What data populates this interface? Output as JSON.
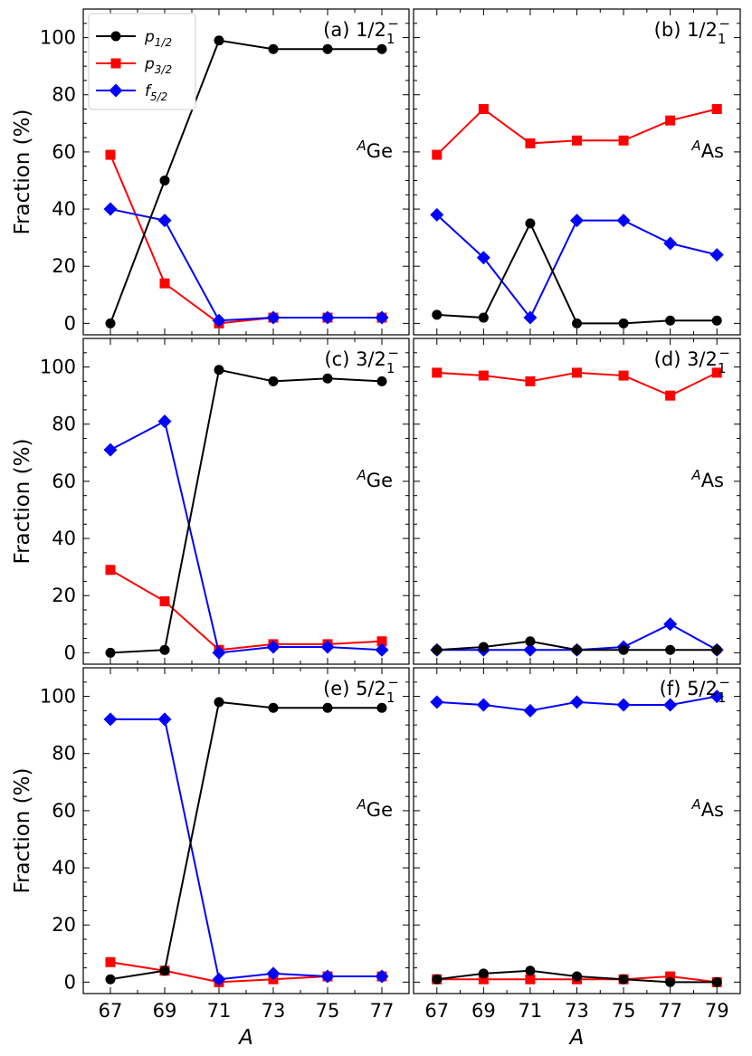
{
  "chart_data": {
    "type": "line",
    "ylabel": "Fraction (%)",
    "xlabel": "A",
    "ylim": [
      -4,
      110
    ],
    "yticks": [
      0,
      20,
      40,
      60,
      80,
      100
    ],
    "grid": false,
    "legend": {
      "placement": "top-left of panel (a)",
      "entries": [
        {
          "series": "p12",
          "text": "p",
          "sub": "1/2"
        },
        {
          "series": "p32",
          "text": "p",
          "sub": "3/2"
        },
        {
          "series": "f52",
          "text": "f",
          "sub": "5/2"
        }
      ]
    },
    "series_styles": {
      "p12": {
        "color": "#000000",
        "marker": "circle"
      },
      "p32": {
        "color": "#ff0000",
        "marker": "square"
      },
      "f52": {
        "color": "#0000ff",
        "marker": "diamond"
      }
    },
    "columns": [
      {
        "nucleus": "Ge",
        "superscript": "A",
        "x": [
          67,
          69,
          71,
          73,
          75,
          77
        ],
        "xlim": [
          66,
          78
        ]
      },
      {
        "nucleus": "As",
        "superscript": "A",
        "x": [
          67,
          69,
          71,
          73,
          75,
          77,
          79
        ],
        "xlim": [
          66,
          80
        ]
      }
    ],
    "panels": [
      {
        "id": "a",
        "col": 0,
        "row": 0,
        "label": "(a) 1/2",
        "level_sub": "1",
        "level_sup": "−",
        "series": {
          "p12": [
            0,
            50,
            99,
            96,
            96,
            96
          ],
          "p32": [
            59,
            14,
            0,
            2,
            2,
            2
          ],
          "f52": [
            40,
            36,
            1,
            2,
            2,
            2
          ]
        }
      },
      {
        "id": "b",
        "col": 1,
        "row": 0,
        "label": "(b) 1/2",
        "level_sub": "1",
        "level_sup": "−",
        "series": {
          "p12": [
            3,
            2,
            35,
            0,
            0,
            1,
            1
          ],
          "p32": [
            59,
            75,
            63,
            64,
            64,
            71,
            75
          ],
          "f52": [
            38,
            23,
            2,
            36,
            36,
            28,
            24
          ]
        }
      },
      {
        "id": "c",
        "col": 0,
        "row": 1,
        "label": "(c) 3/2",
        "level_sub": "1",
        "level_sup": "−",
        "series": {
          "p12": [
            0,
            1,
            99,
            95,
            96,
            95
          ],
          "p32": [
            29,
            18,
            1,
            3,
            3,
            4
          ],
          "f52": [
            71,
            81,
            0,
            2,
            2,
            1
          ]
        }
      },
      {
        "id": "d",
        "col": 1,
        "row": 1,
        "label": "(d) 3/2",
        "level_sub": "1",
        "level_sup": "−",
        "series": {
          "p12": [
            1,
            2,
            4,
            1,
            1,
            1,
            1
          ],
          "p32": [
            98,
            97,
            95,
            98,
            97,
            90,
            98
          ],
          "f52": [
            1,
            1,
            1,
            1,
            2,
            10,
            1
          ]
        }
      },
      {
        "id": "e",
        "col": 0,
        "row": 2,
        "label": "(e) 5/2",
        "level_sub": "1",
        "level_sup": "−",
        "series": {
          "p12": [
            1,
            4,
            98,
            96,
            96,
            96
          ],
          "p32": [
            7,
            4,
            0,
            1,
            2,
            2
          ],
          "f52": [
            92,
            92,
            1,
            3,
            2,
            2
          ]
        }
      },
      {
        "id": "f",
        "col": 1,
        "row": 2,
        "label": "(f) 5/2",
        "level_sub": "1",
        "level_sup": "−",
        "series": {
          "p12": [
            1,
            3,
            4,
            2,
            1,
            0,
            0
          ],
          "p32": [
            1,
            1,
            1,
            1,
            1,
            2,
            0
          ],
          "f52": [
            98,
            97,
            95,
            98,
            97,
            97,
            100
          ]
        }
      }
    ]
  }
}
